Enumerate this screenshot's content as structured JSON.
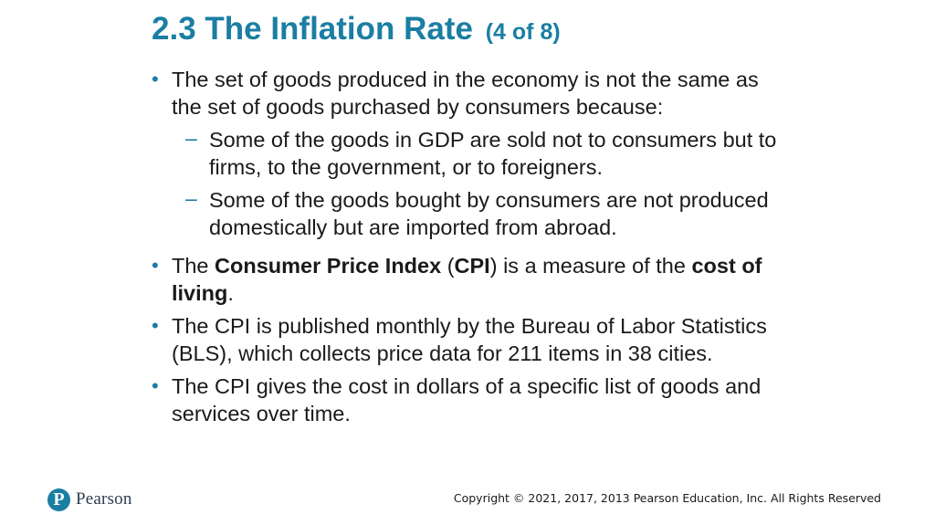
{
  "title": {
    "main": "2.3 The Inflation Rate",
    "sub": "(4 of 8)"
  },
  "bullets": [
    {
      "text": "The set of goods produced in the economy is not the same as the set of goods purchased by consumers because:",
      "sub_bullets": [
        "Some of the goods in GDP are sold not to consumers but to firms, to the government, or to foreigners.",
        "Some of the goods bought by consumers are not produced domestically but are imported from abroad."
      ]
    },
    {
      "part1": "The ",
      "bold1": "Consumer Price Index",
      "part2": " (",
      "bold2": "CPI",
      "part3": ") is a measure of the ",
      "bold3": "cost of living",
      "part4": "."
    },
    {
      "text": "The CPI is published monthly by the Bureau of Labor Statistics (BLS), which collects price data for 211 items in 38 cities."
    },
    {
      "text": "The CPI gives the cost in dollars of a specific list of goods and services over time."
    }
  ],
  "markers": {
    "bullet": "•",
    "dash": "–"
  },
  "footer": {
    "logo_letter": "P",
    "logo_word": "Pearson",
    "copyright": "Copyright © 2021, 2017, 2013 Pearson Education, Inc. All Rights Reserved"
  },
  "colors": {
    "accent": "#1b7ea3",
    "text": "#1a1a1a"
  }
}
